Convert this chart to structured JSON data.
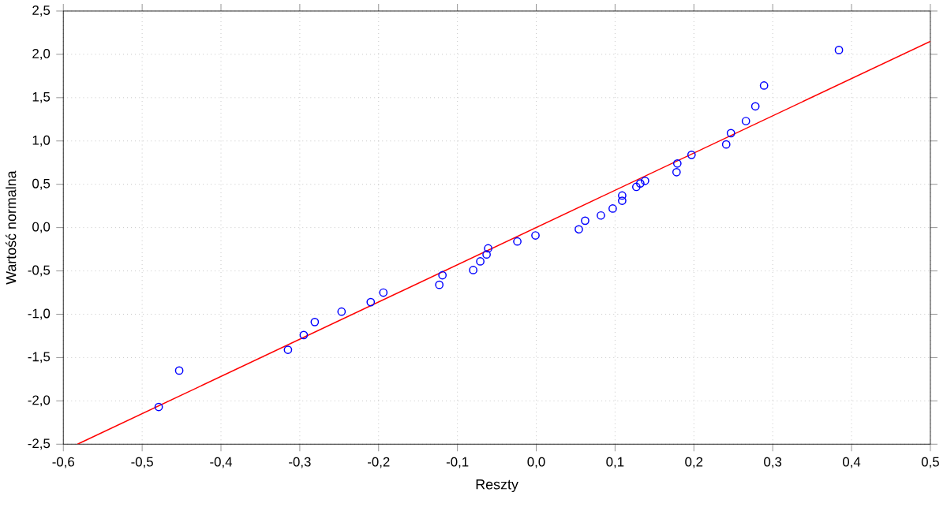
{
  "chart_data": {
    "type": "scatter",
    "xlabel": "Reszty",
    "ylabel": "Wartość normalna",
    "xlim": [
      -0.6,
      0.5
    ],
    "ylim": [
      -2.5,
      2.5
    ],
    "xticks": [
      {
        "value": -0.6,
        "label": "-0,6"
      },
      {
        "value": -0.5,
        "label": "-0,5"
      },
      {
        "value": -0.4,
        "label": "-0,4"
      },
      {
        "value": -0.3,
        "label": "-0,3"
      },
      {
        "value": -0.2,
        "label": "-0,2"
      },
      {
        "value": -0.1,
        "label": "-0,1"
      },
      {
        "value": 0,
        "label": "0,0"
      },
      {
        "value": 0.1,
        "label": "0,1"
      },
      {
        "value": 0.2,
        "label": "0,2"
      },
      {
        "value": 0.3,
        "label": "0,3"
      },
      {
        "value": 0.4,
        "label": "0,4"
      },
      {
        "value": 0.5,
        "label": "0,5"
      }
    ],
    "yticks": [
      {
        "value": -2.5,
        "label": "-2,5"
      },
      {
        "value": -2,
        "label": "-2,0"
      },
      {
        "value": -1.5,
        "label": "-1,5"
      },
      {
        "value": -1,
        "label": "-1,0"
      },
      {
        "value": -0.5,
        "label": "-0,5"
      },
      {
        "value": 0,
        "label": "0,0"
      },
      {
        "value": 0.5,
        "label": "0,5"
      },
      {
        "value": 1,
        "label": "1,0"
      },
      {
        "value": 1.5,
        "label": "1,5"
      },
      {
        "value": 2,
        "label": "2,0"
      },
      {
        "value": 2.5,
        "label": "2,5"
      }
    ],
    "grid": true,
    "series": [
      {
        "marker": "circle",
        "color": "#0000ff",
        "x": [
          -0.479,
          -0.453,
          -0.315,
          -0.295,
          -0.281,
          -0.247,
          -0.21,
          -0.194,
          -0.123,
          -0.119,
          -0.08,
          -0.071,
          -0.063,
          -0.061,
          -0.024,
          -0.001,
          0.054,
          0.062,
          0.082,
          0.097,
          0.109,
          0.109,
          0.127,
          0.132,
          0.138,
          0.178,
          0.179,
          0.197,
          0.241,
          0.247,
          0.266,
          0.278,
          0.289,
          0.384
        ],
        "values": [
          -2.07,
          -1.65,
          -1.41,
          -1.24,
          -1.09,
          -0.97,
          -0.86,
          -0.75,
          -0.66,
          -0.55,
          -0.49,
          -0.39,
          -0.31,
          -0.24,
          -0.16,
          -0.09,
          -0.02,
          0.08,
          0.14,
          0.22,
          0.31,
          0.37,
          0.47,
          0.51,
          0.54,
          0.64,
          0.74,
          0.84,
          0.96,
          1.09,
          1.23,
          1.4,
          1.64,
          2.05
        ]
      },
      {
        "type": "line",
        "color": "#ff0000",
        "x": [
          -0.582,
          0.5
        ],
        "values": [
          -2.5,
          2.15
        ]
      }
    ]
  }
}
